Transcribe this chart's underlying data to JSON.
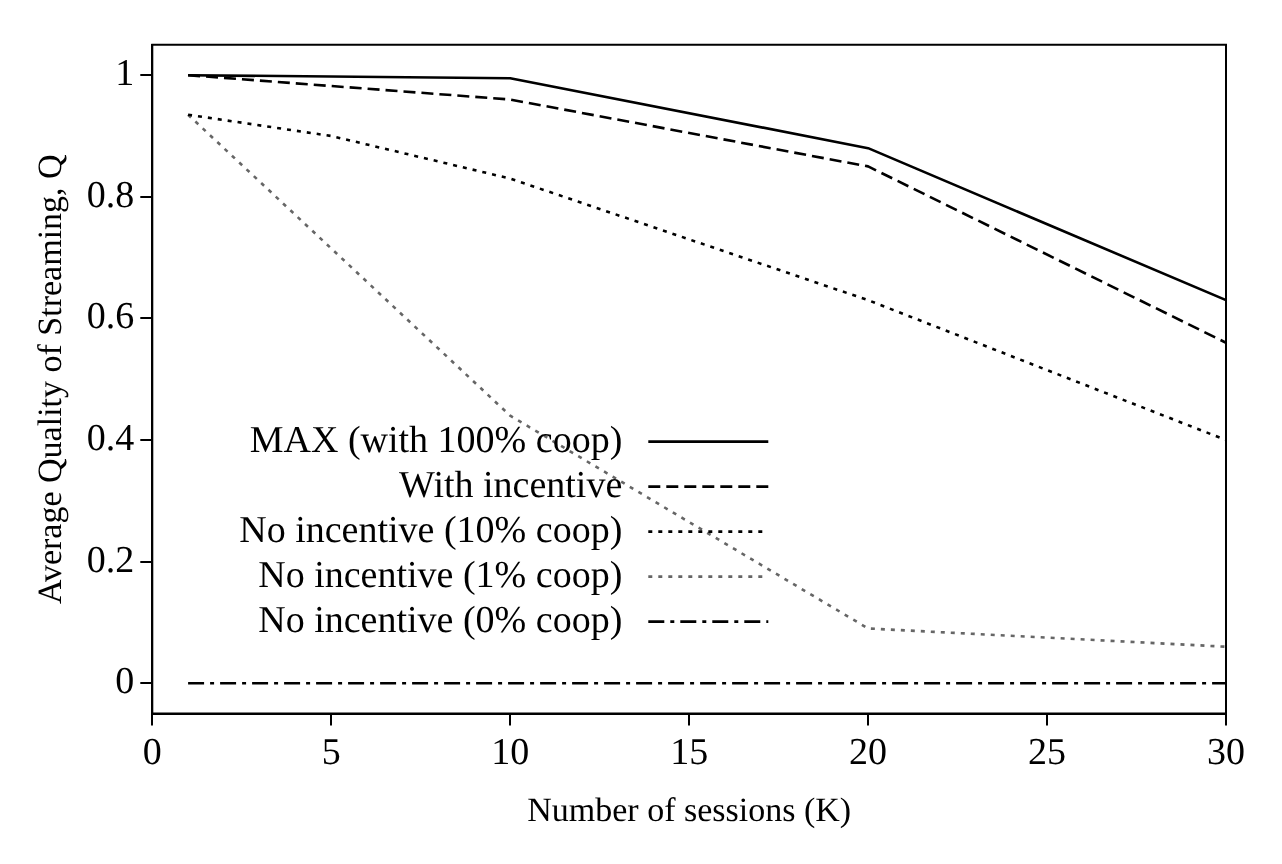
{
  "chart_data": {
    "type": "line",
    "xlabel": "Number of sessions (K)",
    "ylabel": "Average Quality of Streaming, Q",
    "xlim": [
      0,
      30
    ],
    "xticks": [
      0,
      5,
      10,
      15,
      20,
      25,
      30
    ],
    "ylim": [
      -0.05,
      1.05
    ],
    "yticks": [
      0,
      0.2,
      0.4,
      0.6,
      0.8,
      1
    ],
    "legend": "bottom left",
    "grid": false,
    "marker": "none",
    "series": [
      {
        "name": "MAX (with 100% coop)",
        "color": "#000000",
        "line_style": "solid",
        "x": [
          1,
          10,
          20,
          30
        ],
        "values": [
          1,
          0.995,
          0.88,
          0.63
        ]
      },
      {
        "name": "With incentive",
        "color": "#000000",
        "line_style": "dashed",
        "x": [
          1,
          10,
          20,
          30
        ],
        "values": [
          1,
          0.96,
          0.85,
          0.56
        ]
      },
      {
        "name": "No incentive (10% coop)",
        "color": "#000000",
        "line_style": "dotted",
        "x": [
          1,
          5,
          10,
          20,
          30
        ],
        "values": [
          0.935,
          0.9,
          0.83,
          0.63,
          0.4
        ]
      },
      {
        "name": "No incentive (1% coop)",
        "color": "#666666",
        "line_style": "dotted",
        "x": [
          1,
          10,
          20,
          30
        ],
        "values": [
          0.935,
          0.44,
          0.09,
          0.06
        ]
      },
      {
        "name": "No incentive (0% coop)",
        "color": "#000000",
        "line_style": "dashdot",
        "x": [
          1,
          10,
          20,
          30
        ],
        "values": [
          0,
          0,
          0,
          0
        ]
      }
    ]
  }
}
